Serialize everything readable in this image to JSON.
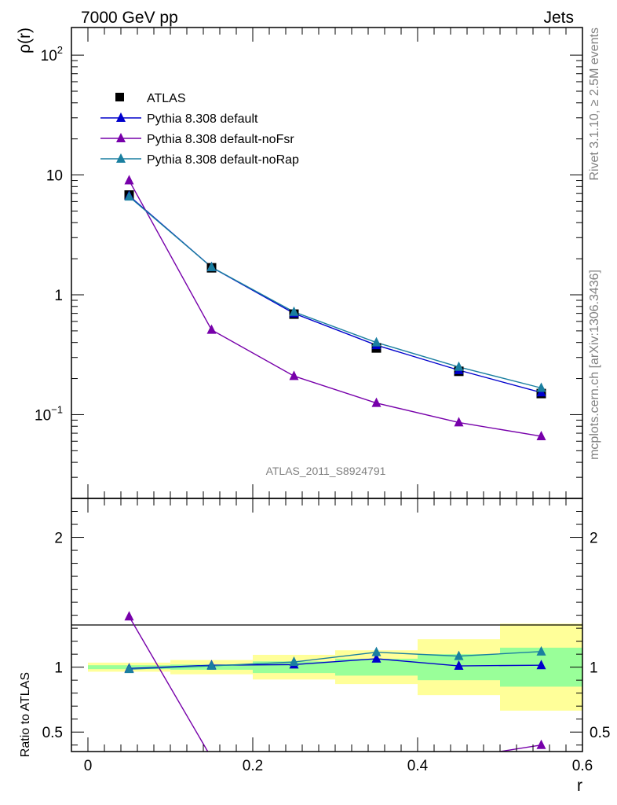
{
  "header": {
    "left": "7000 GeV pp",
    "right": "Jets"
  },
  "side": {
    "top": "Rivet 3.1.10, ≥ 2.5M events",
    "bottom": "mcplots.cern.ch [arXiv:1306.3436]"
  },
  "analysis_id": "ATLAS_2011_S8924791",
  "colors": {
    "atlas": "#000000",
    "default": "#0000cc",
    "noFsr": "#7700aa",
    "noRap": "#1a7fa0",
    "band_outer": "#ffff99",
    "band_inner": "#99ff99"
  },
  "chart_data": [
    {
      "type": "line",
      "ylabel": "ρ(r)",
      "yscale": "log",
      "ylim": [
        0.02,
        170
      ],
      "xlim": [
        -0.02,
        0.6
      ],
      "y_ticks": [
        {
          "value": 0.1,
          "base": "10",
          "exp": "−1"
        },
        {
          "value": 1,
          "base": "1",
          "exp": ""
        },
        {
          "value": 10,
          "base": "10",
          "exp": ""
        },
        {
          "value": 100,
          "base": "10",
          "exp": "2"
        }
      ],
      "legend_position": "top-left",
      "x": [
        0.05,
        0.15,
        0.25,
        0.35,
        0.45,
        0.55
      ],
      "series": [
        {
          "name": "ATLAS",
          "marker": "square",
          "values": [
            6.8,
            1.68,
            0.69,
            0.36,
            0.23,
            0.15
          ]
        },
        {
          "name": "Pythia 8.308 default",
          "marker": "triangle",
          "values": [
            6.7,
            1.7,
            0.7,
            0.38,
            0.235,
            0.153
          ]
        },
        {
          "name": "Pythia 8.308 default-noFsr",
          "marker": "triangle",
          "values": [
            9.0,
            0.51,
            0.21,
            0.125,
            0.086,
            0.066
          ]
        },
        {
          "name": "Pythia 8.308 default-noRap",
          "marker": "triangle",
          "values": [
            6.6,
            1.7,
            0.72,
            0.4,
            0.25,
            0.167
          ]
        }
      ]
    },
    {
      "type": "line",
      "ylabel": "Ratio to ATLAS",
      "xlabel": "r",
      "ylim": [
        0.35,
        2.3
      ],
      "xlim": [
        -0.02,
        0.6
      ],
      "x_ticks": [
        "0",
        "0.2",
        "0.4",
        "0.6"
      ],
      "y_ticks": [
        "0.5",
        "1",
        "2"
      ],
      "x": [
        0.05,
        0.15,
        0.25,
        0.35,
        0.45,
        0.55
      ],
      "bands": [
        {
          "x0": 0.0,
          "x1": 0.1,
          "inner": [
            0.985,
            1.015
          ],
          "outer": [
            0.965,
            1.035
          ]
        },
        {
          "x0": 0.1,
          "x1": 0.2,
          "inner": [
            0.98,
            1.02
          ],
          "outer": [
            0.945,
            1.055
          ]
        },
        {
          "x0": 0.2,
          "x1": 0.3,
          "inner": [
            0.955,
            1.045
          ],
          "outer": [
            0.905,
            1.095
          ]
        },
        {
          "x0": 0.3,
          "x1": 0.4,
          "inner": [
            0.935,
            1.065
          ],
          "outer": [
            0.87,
            1.13
          ]
        },
        {
          "x0": 0.4,
          "x1": 0.5,
          "inner": [
            0.9,
            1.1
          ],
          "outer": [
            0.785,
            1.215
          ]
        },
        {
          "x0": 0.5,
          "x1": 0.6,
          "inner": [
            0.85,
            1.15
          ],
          "outer": [
            0.665,
            1.335
          ]
        }
      ],
      "series": [
        {
          "name": "Pythia 8.308 default",
          "values": [
            0.99,
            1.015,
            1.02,
            1.065,
            1.01,
            1.015
          ]
        },
        {
          "name": "Pythia 8.308 default-noFsr",
          "values": [
            1.39,
            0.3,
            0.3,
            0.3,
            0.3,
            0.4
          ]
        },
        {
          "name": "Pythia 8.308 default-noRap",
          "values": [
            0.985,
            1.01,
            1.04,
            1.115,
            1.085,
            1.12
          ]
        }
      ]
    }
  ]
}
